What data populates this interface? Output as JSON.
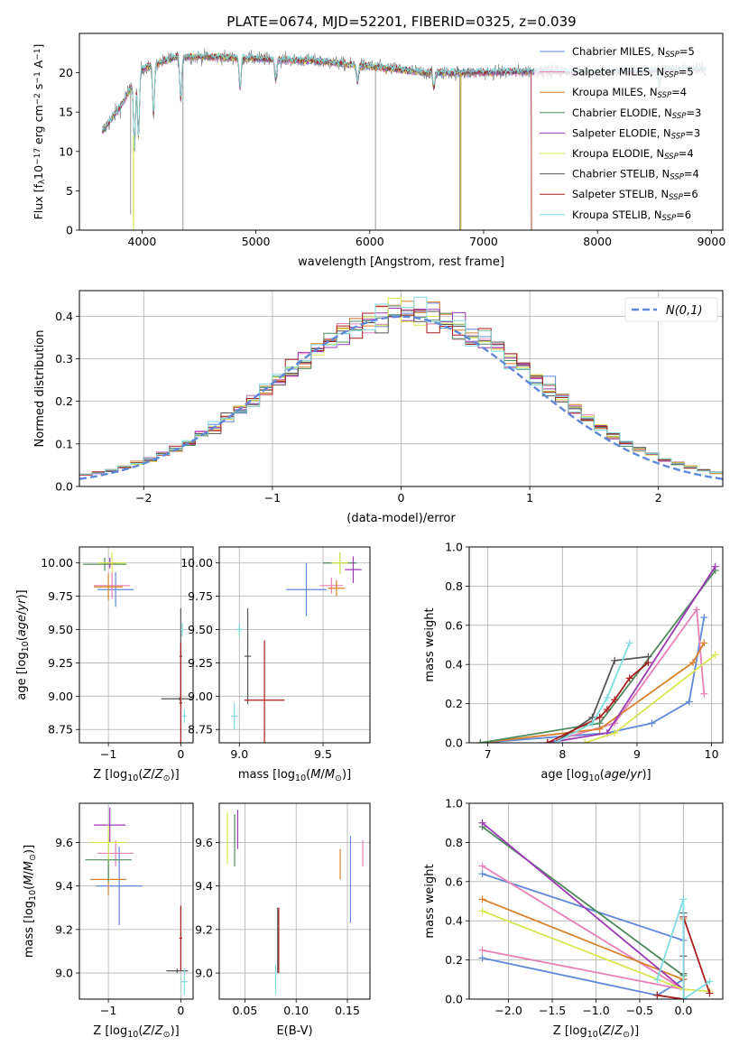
{
  "figure_title": "PLATE=0674, MJD=52201, FIBERID=0325, z=0.039",
  "legend_entries": [
    {
      "label": "Chabrier MILES, N_SSP=5",
      "base": "Chabrier MILES, N",
      "sub": "SSP",
      "tail": "=5",
      "color": "#5f88d9"
    },
    {
      "label": "Salpeter MILES, N_SSP=5",
      "base": "Salpeter MILES, N",
      "sub": "SSP",
      "tail": "=5",
      "color": "#e87fb6"
    },
    {
      "label": "Kroupa MILES, N_SSP=4",
      "base": "Kroupa MILES, N",
      "sub": "SSP",
      "tail": "=4",
      "color": "#d9822b"
    },
    {
      "label": "Chabrier ELODIE, N_SSP=3",
      "base": "Chabrier ELODIE, N",
      "sub": "SSP",
      "tail": "=3",
      "color": "#4e8a5e"
    },
    {
      "label": "Salpeter ELODIE, N_SSP=3",
      "base": "Salpeter ELODIE, N",
      "sub": "SSP",
      "tail": "=3",
      "color": "#9b3ab5"
    },
    {
      "label": "Kroupa ELODIE, N_SSP=4",
      "base": "Kroupa ELODIE, N",
      "sub": "SSP",
      "tail": "=4",
      "color": "#d9e650"
    },
    {
      "label": "Chabrier STELIB, N_SSP=4",
      "base": "Chabrier STELIB, N",
      "sub": "SSP",
      "tail": "=4",
      "color": "#555555"
    },
    {
      "label": "Salpeter STELIB, N_SSP=6",
      "base": "Salpeter STELIB, N",
      "sub": "SSP",
      "tail": "=6",
      "color": "#a81e1e"
    },
    {
      "label": "Kroupa STELIB, N_SSP=6",
      "base": "Kroupa STELIB, N",
      "sub": "SSP",
      "tail": "=6",
      "color": "#7fdce0"
    }
  ],
  "chart_data": [
    {
      "id": "spectrum",
      "type": "line",
      "xlabel": "wavelength [Angstrom, rest frame]",
      "ylabel": "Flux [f_λ 10^-17 erg cm^-2 s^-1 A^-1]",
      "xlim": [
        3450,
        9100
      ],
      "ylim": [
        0,
        25
      ],
      "xticks": [
        4000,
        5000,
        6000,
        7000,
        8000,
        9000
      ],
      "yticks": [
        0,
        5,
        10,
        15,
        20
      ],
      "grid": false,
      "legend": "right",
      "data_color": "#808080",
      "continuum": {
        "x": [
          3650,
          3800,
          4000,
          4300,
          4600,
          5000,
          5500,
          6000,
          6500,
          7000,
          7500,
          8000,
          8500,
          8900
        ],
        "y": [
          12.5,
          15.5,
          20.5,
          22.0,
          22.0,
          21.8,
          21.5,
          20.8,
          20.0,
          20.0,
          20.2,
          20.0,
          20.3,
          20.4
        ]
      },
      "model_cutoffs": [
        {
          "series": "Chabrier MILES",
          "x": 7420
        },
        {
          "series": "Kroupa MILES",
          "x": 7420
        },
        {
          "series": "Kroupa ELODIE",
          "x": 6800
        },
        {
          "series": "Salpeter STELIB",
          "x": 7420
        }
      ]
    },
    {
      "id": "residual-histogram",
      "type": "histogram",
      "xlabel": "(data-model)/error",
      "ylabel": "Normed distribution",
      "xlim": [
        -2.5,
        2.5
      ],
      "ylim": [
        0,
        0.46
      ],
      "xticks": [
        -2,
        -1,
        0,
        1,
        2
      ],
      "yticks": [
        0.0,
        0.1,
        0.2,
        0.3,
        0.4
      ],
      "grid": true,
      "legend": "top-right",
      "reference_label": "N(0,1)",
      "reference_color": "#5f88d9",
      "bin_width": 0.1
    },
    {
      "id": "age-vs-z",
      "type": "errorbar",
      "xlabel": "Z [log10(Z/Z_sun)]",
      "ylabel": "age [log10(age/yr)]",
      "xlim": [
        -1.4,
        0.17
      ],
      "ylim": [
        8.65,
        10.12
      ],
      "xticks": [
        -1,
        0
      ],
      "yticks": [
        8.75,
        9.0,
        9.25,
        9.5,
        9.75,
        10.0
      ],
      "grid": true,
      "points": [
        {
          "color": "#5f88d9",
          "x": -0.9,
          "xerr": 0.25,
          "y": 9.8,
          "yerr": 0.13
        },
        {
          "color": "#e87fb6",
          "x": -0.95,
          "xerr": 0.25,
          "y": 9.83,
          "yerr": 0.1
        },
        {
          "color": "#d9822b",
          "x": -1.0,
          "xerr": 0.2,
          "y": 9.82,
          "yerr": 0.1
        },
        {
          "color": "#4e8a5e",
          "x": -1.05,
          "xerr": 0.3,
          "y": 9.99,
          "yerr": 0.05
        },
        {
          "color": "#9b3ab5",
          "x": -0.98,
          "xerr": 0.1,
          "y": 10.0,
          "yerr": 0.04
        },
        {
          "color": "#d9e650",
          "x": -0.95,
          "xerr": 0.2,
          "y": 10.0,
          "yerr": 0.08
        },
        {
          "color": "#555555",
          "x": -0.02,
          "xerr": 0.25,
          "y": 8.98,
          "yerr": 0.01
        },
        {
          "color": "#555555",
          "x": 0.0,
          "xerr": 0.02,
          "y": 9.3,
          "yerr": 0.36
        },
        {
          "color": "#a81e1e",
          "x": 0.0,
          "xerr": 0.02,
          "y": 8.95,
          "yerr": 0.45
        },
        {
          "color": "#7fdce0",
          "x": 0.05,
          "xerr": 0.03,
          "y": 8.85,
          "yerr": 0.05
        },
        {
          "color": "#7fdce0",
          "x": 0.02,
          "xerr": 0.02,
          "y": 9.5,
          "yerr": 0.05
        }
      ]
    },
    {
      "id": "age-vs-mass",
      "type": "errorbar",
      "xlabel": "mass [log10(M/M_sun)]",
      "ylabel": "",
      "xlim": [
        8.88,
        9.78
      ],
      "ylim": [
        8.65,
        10.12
      ],
      "xticks": [
        9.0,
        9.5
      ],
      "yticks": [
        8.75,
        9.0,
        9.25,
        9.5,
        9.75,
        10.0
      ],
      "grid": true,
      "points": [
        {
          "color": "#5f88d9",
          "x": 9.4,
          "xerr": 0.12,
          "y": 9.8,
          "yerr": 0.2
        },
        {
          "color": "#e87fb6",
          "x": 9.55,
          "xerr": 0.07,
          "y": 9.83,
          "yerr": 0.06
        },
        {
          "color": "#d9822b",
          "x": 9.58,
          "xerr": 0.05,
          "y": 9.81,
          "yerr": 0.06
        },
        {
          "color": "#4e8a5e",
          "x": 9.6,
          "xerr": 0.1,
          "y": 10.0,
          "yerr": 0.08
        },
        {
          "color": "#9b3ab5",
          "x": 9.68,
          "xerr": 0.05,
          "y": 9.95,
          "yerr": 0.1
        },
        {
          "color": "#d9e650",
          "x": 9.6,
          "xerr": 0.05,
          "y": 10.0,
          "yerr": 0.08
        },
        {
          "color": "#555555",
          "x": 9.05,
          "xerr": 0.02,
          "y": 9.3,
          "yerr": 0.36
        },
        {
          "color": "#a81e1e",
          "x": 9.15,
          "xerr": 0.12,
          "y": 8.97,
          "yerr": 0.45
        },
        {
          "color": "#7fdce0",
          "x": 8.97,
          "xerr": 0.02,
          "y": 8.85,
          "yerr": 0.1
        },
        {
          "color": "#7fdce0",
          "x": 9.0,
          "xerr": 0.02,
          "y": 9.5,
          "yerr": 0.05
        }
      ]
    },
    {
      "id": "weight-vs-age",
      "type": "line",
      "xlabel": "age [log10(age/yr)]",
      "ylabel": "mass weight",
      "xlim": [
        6.75,
        10.15
      ],
      "ylim": [
        0,
        1.0
      ],
      "xticks": [
        7,
        8,
        9,
        10
      ],
      "yticks": [
        0.0,
        0.2,
        0.4,
        0.6,
        0.8,
        1.0
      ],
      "grid": true,
      "series": [
        {
          "color": "#5f88d9",
          "x": [
            6.9,
            8.6,
            9.2,
            9.7,
            9.9
          ],
          "y": [
            0.0,
            0.05,
            0.1,
            0.21,
            0.64
          ]
        },
        {
          "color": "#e87fb6",
          "x": [
            7.8,
            8.7,
            9.8,
            9.9
          ],
          "y": [
            0.0,
            0.1,
            0.68,
            0.25
          ]
        },
        {
          "color": "#d9822b",
          "x": [
            6.9,
            8.5,
            9.75,
            9.9
          ],
          "y": [
            0.0,
            0.07,
            0.41,
            0.51
          ]
        },
        {
          "color": "#4e8a5e",
          "x": [
            6.9,
            8.5,
            10.05
          ],
          "y": [
            0.0,
            0.1,
            0.88
          ]
        },
        {
          "color": "#9b3ab5",
          "x": [
            7.8,
            8.6,
            10.05
          ],
          "y": [
            0.0,
            0.05,
            0.9
          ]
        },
        {
          "color": "#d9e650",
          "x": [
            8.3,
            8.7,
            10.05
          ],
          "y": [
            0.0,
            0.05,
            0.45
          ]
        },
        {
          "color": "#555555",
          "x": [
            7.9,
            8.4,
            8.7,
            9.15
          ],
          "y": [
            0.0,
            0.13,
            0.42,
            0.44
          ]
        },
        {
          "color": "#a81e1e",
          "x": [
            7.8,
            8.5,
            8.6,
            8.7,
            8.9,
            9.15
          ],
          "y": [
            0.0,
            0.13,
            0.17,
            0.22,
            0.33,
            0.41
          ]
        },
        {
          "color": "#7fdce0",
          "x": [
            7.9,
            8.4,
            8.6,
            8.9
          ],
          "y": [
            0.0,
            0.1,
            0.23,
            0.51
          ]
        }
      ]
    },
    {
      "id": "mass-vs-z",
      "type": "errorbar",
      "xlabel": "Z [log10(Z/Z_sun)]",
      "ylabel": "mass [log10(M/M_sun)]",
      "xlim": [
        -1.4,
        0.17
      ],
      "ylim": [
        8.88,
        9.78
      ],
      "xticks": [
        -1,
        0
      ],
      "yticks": [
        9.0,
        9.2,
        9.4,
        9.6
      ],
      "grid": true,
      "points": [
        {
          "color": "#5f88d9",
          "x": -0.85,
          "xerr": 0.32,
          "y": 9.4,
          "yerr": 0.18
        },
        {
          "color": "#e87fb6",
          "x": -0.9,
          "xerr": 0.25,
          "y": 9.55,
          "yerr": 0.06
        },
        {
          "color": "#d9822b",
          "x": -1.0,
          "xerr": 0.25,
          "y": 9.43,
          "yerr": 0.07
        },
        {
          "color": "#4e8a5e",
          "x": -1.0,
          "xerr": 0.32,
          "y": 9.52,
          "yerr": 0.1
        },
        {
          "color": "#9b3ab5",
          "x": -0.98,
          "xerr": 0.22,
          "y": 9.68,
          "yerr": 0.08
        },
        {
          "color": "#d9e650",
          "x": -1.0,
          "xerr": 0.25,
          "y": 9.6,
          "yerr": 0.08
        },
        {
          "color": "#555555",
          "x": -0.05,
          "xerr": 0.15,
          "y": 9.01,
          "yerr": 0.01
        },
        {
          "color": "#a81e1e",
          "x": 0.0,
          "xerr": 0.02,
          "y": 9.16,
          "yerr": 0.15
        },
        {
          "color": "#7fdce0",
          "x": 0.05,
          "xerr": 0.05,
          "y": 8.96,
          "yerr": 0.06
        }
      ]
    },
    {
      "id": "mass-vs-ebv",
      "type": "errorbar",
      "xlabel": "E(B-V)",
      "ylabel": "",
      "xlim": [
        0.025,
        0.172
      ],
      "ylim": [
        8.88,
        9.78
      ],
      "xticks": [
        0.05,
        0.1,
        0.15
      ],
      "yticks": [
        9.0,
        9.2,
        9.4,
        9.6
      ],
      "grid": true,
      "points": [
        {
          "color": "#5f88d9",
          "x": 0.153,
          "xerr": 0,
          "y": 9.43,
          "yerr": 0.2
        },
        {
          "color": "#e87fb6",
          "x": 0.165,
          "xerr": 0,
          "y": 9.55,
          "yerr": 0.06
        },
        {
          "color": "#d9822b",
          "x": 0.143,
          "xerr": 0,
          "y": 9.5,
          "yerr": 0.07
        },
        {
          "color": "#4e8a5e",
          "x": 0.04,
          "xerr": 0,
          "y": 9.61,
          "yerr": 0.12
        },
        {
          "color": "#9b3ab5",
          "x": 0.043,
          "xerr": 0,
          "y": 9.66,
          "yerr": 0.09
        },
        {
          "color": "#d9e650",
          "x": 0.033,
          "xerr": 0,
          "y": 9.62,
          "yerr": 0.12
        },
        {
          "color": "#555555",
          "x": 0.082,
          "xerr": 0,
          "y": 9.15,
          "yerr": 0.15
        },
        {
          "color": "#a81e1e",
          "x": 0.083,
          "xerr": 0,
          "y": 9.15,
          "yerr": 0.15
        },
        {
          "color": "#7fdce0",
          "x": 0.08,
          "xerr": 0,
          "y": 8.97,
          "yerr": 0.07
        }
      ]
    },
    {
      "id": "weight-vs-z",
      "type": "line",
      "xlabel": "Z [log10(Z/Z_sun)]",
      "ylabel": "mass weight",
      "xlim": [
        -2.45,
        0.45
      ],
      "ylim": [
        0,
        1.0
      ],
      "xticks": [
        -2.0,
        -1.5,
        -1.0,
        -0.5,
        0.0
      ],
      "yticks": [
        0.0,
        0.2,
        0.4,
        0.6,
        0.8,
        1.0
      ],
      "grid": true,
      "series": [
        {
          "color": "#5f88d9",
          "x": [
            -2.3,
            -0.3,
            0.0,
            0.0,
            -2.3
          ],
          "y": [
            0.21,
            0.02,
            0.1,
            0.3,
            0.64
          ]
        },
        {
          "color": "#e87fb6",
          "x": [
            -2.3,
            0.0,
            -2.3
          ],
          "y": [
            0.25,
            0.05,
            0.68
          ]
        },
        {
          "color": "#d9822b",
          "x": [
            -2.3,
            0.0,
            0.0,
            0.0
          ],
          "y": [
            0.51,
            0.1,
            0.41,
            0.0
          ]
        },
        {
          "color": "#4e8a5e",
          "x": [
            -2.3,
            0.0,
            0.0
          ],
          "y": [
            0.88,
            0.12,
            0.0
          ]
        },
        {
          "color": "#9b3ab5",
          "x": [
            -2.3,
            0.0,
            0.0
          ],
          "y": [
            0.9,
            0.05,
            0.0
          ]
        },
        {
          "color": "#d9e650",
          "x": [
            -2.3,
            0.0,
            0.3
          ],
          "y": [
            0.45,
            0.05,
            0.04
          ]
        },
        {
          "color": "#555555",
          "x": [
            0.0,
            0.0,
            0.0,
            0.0
          ],
          "y": [
            0.0,
            0.13,
            0.22,
            0.44
          ]
        },
        {
          "color": "#a81e1e",
          "x": [
            -0.3,
            0.0,
            0.0,
            0.3
          ],
          "y": [
            0.02,
            0.0,
            0.42,
            0.03
          ]
        },
        {
          "color": "#7fdce0",
          "x": [
            -0.3,
            0.0,
            0.0,
            0.3
          ],
          "y": [
            0.1,
            0.51,
            0.0,
            0.09
          ]
        }
      ]
    }
  ]
}
